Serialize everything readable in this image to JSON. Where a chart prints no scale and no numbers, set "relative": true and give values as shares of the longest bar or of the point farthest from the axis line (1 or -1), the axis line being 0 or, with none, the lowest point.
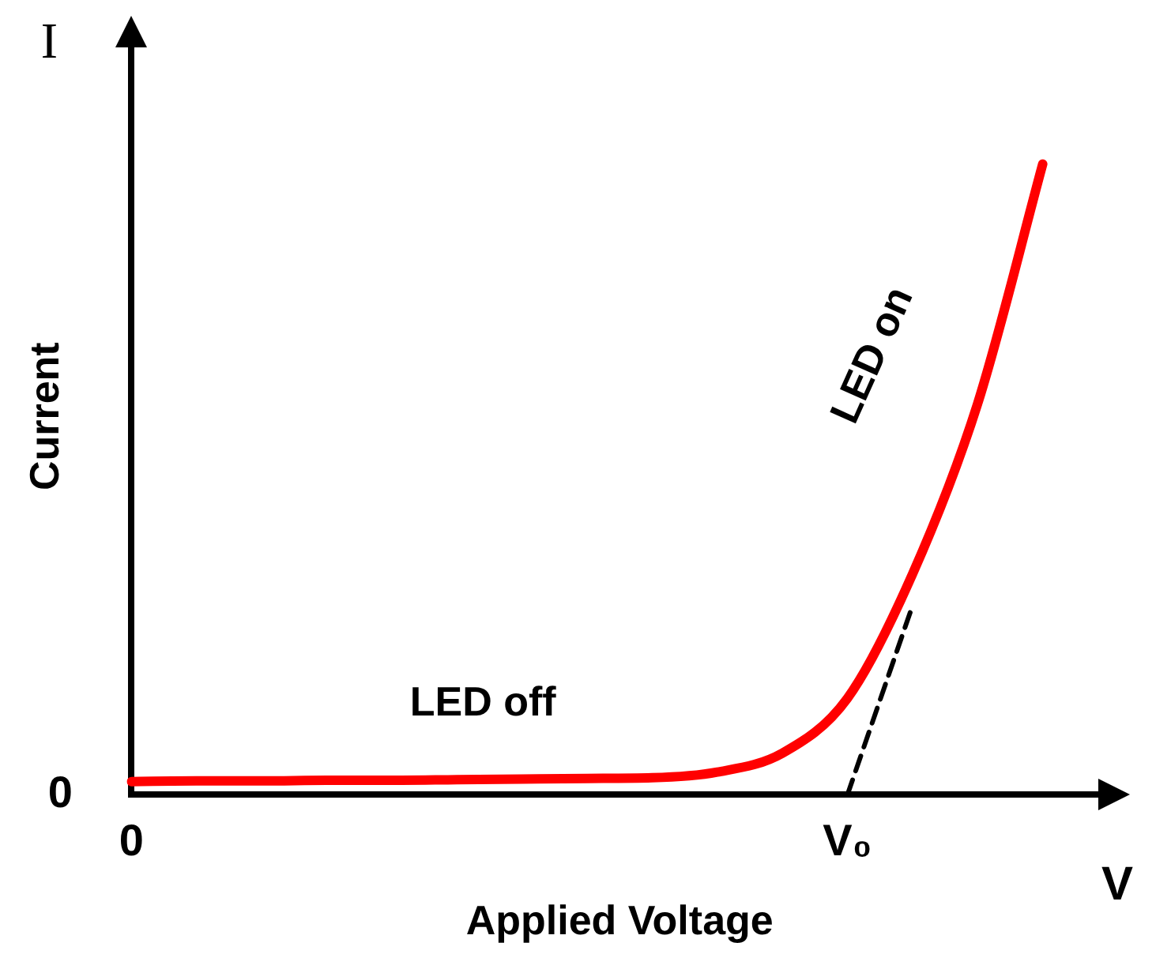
{
  "chart_data": {
    "type": "line",
    "relative": true,
    "xlabel": "Applied Voltage",
    "ylabel": "Current",
    "categories": [
      "0",
      null,
      null,
      null,
      null,
      null,
      null,
      null,
      null,
      null,
      null,
      "V₀",
      null,
      null,
      null,
      null
    ],
    "series": [
      {
        "color": "#ff0000",
        "values": [
          0.021,
          0.022,
          0.022,
          0.023,
          0.023,
          0.024,
          0.025,
          0.026,
          0.027,
          0.036,
          0.066,
          0.153,
          0.35,
          0.62,
          1,
          null
        ]
      },
      {
        "type": "line",
        "line_style": "dashed",
        "color": "#000000",
        "values": [
          null,
          null,
          null,
          null,
          null,
          null,
          null,
          null,
          null,
          null,
          null,
          0,
          0.3,
          null,
          null,
          null
        ]
      }
    ],
    "annotations": [
      "I",
      "V",
      "0",
      "LED off",
      "LED on"
    ],
    "grid": false,
    "legend": false,
    "marker": "none"
  }
}
